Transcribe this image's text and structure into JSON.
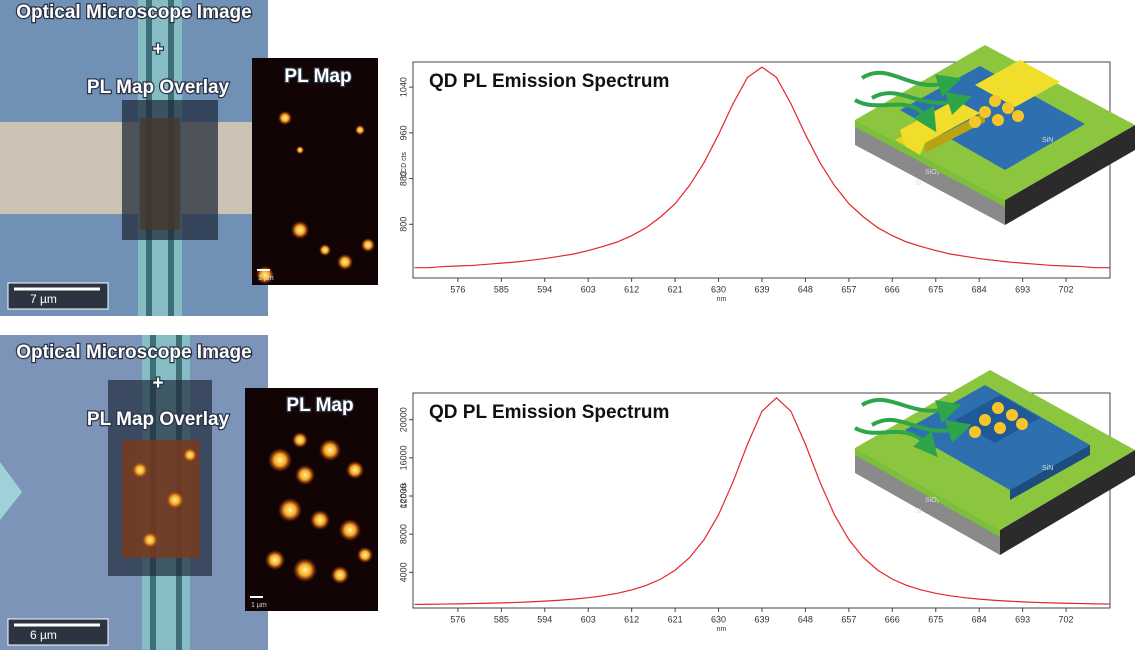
{
  "rows": [
    {
      "microscope": {
        "title": "Optical Microscope Image",
        "plus": "+",
        "subtitle": "PL Map Overlay",
        "scale_bar": "7 µm"
      },
      "pl_map": {
        "title": "PL Map",
        "scale_bar": "1 µm"
      },
      "device": {
        "labels": [
          "SiO₂",
          "Si",
          "SiN"
        ]
      }
    },
    {
      "microscope": {
        "title": "Optical Microscope Image",
        "plus": "+",
        "subtitle": "PL Map Overlay",
        "scale_bar": "6 µm"
      },
      "pl_map": {
        "title": "PL Map",
        "scale_bar": "1 µm"
      },
      "device": {
        "labels": [
          "SiO₂",
          "Si",
          "SiN"
        ]
      }
    }
  ],
  "chart_data": [
    {
      "type": "line",
      "title": "QD PL Emission Spectrum",
      "x_label": "nm",
      "y_label": "CCD cts",
      "color": "#e3262b",
      "x": [
        567,
        570,
        573,
        576,
        579,
        582,
        585,
        588,
        591,
        594,
        597,
        600,
        603,
        606,
        609,
        612,
        615,
        618,
        621,
        624,
        627,
        630,
        633,
        636,
        639,
        642,
        645,
        648,
        651,
        654,
        657,
        660,
        663,
        666,
        669,
        672,
        675,
        678,
        681,
        684,
        687,
        690,
        693,
        696,
        699,
        702,
        705,
        708,
        711
      ],
      "values": [
        724,
        724,
        726,
        727,
        728,
        730,
        732,
        734,
        737,
        740,
        744,
        748,
        754,
        761,
        769,
        780,
        794,
        813,
        836,
        868,
        908,
        957,
        1011,
        1057,
        1075,
        1057,
        1011,
        957,
        908,
        868,
        836,
        813,
        794,
        780,
        769,
        761,
        754,
        748,
        744,
        740,
        737,
        734,
        732,
        730,
        728,
        727,
        726,
        724,
        724
      ],
      "xlim": [
        566.7,
        711.1
      ],
      "xticks": [
        576,
        585,
        594,
        603,
        612,
        621,
        630,
        639,
        648,
        657,
        666,
        675,
        684,
        693,
        702
      ],
      "ylim": [
        706,
        1084
      ],
      "yticks": [
        800,
        880,
        960,
        1040
      ]
    },
    {
      "type": "line",
      "title": "QD PL Emission Spectrum",
      "x_label": "nm",
      "y_label": "CCD cts",
      "color": "#e3262b",
      "x": [
        567,
        570,
        573,
        576,
        579,
        582,
        585,
        588,
        591,
        594,
        597,
        600,
        603,
        606,
        609,
        612,
        615,
        618,
        621,
        624,
        627,
        630,
        633,
        636,
        639,
        642,
        645,
        648,
        651,
        654,
        657,
        660,
        663,
        666,
        669,
        672,
        675,
        678,
        681,
        684,
        687,
        690,
        693,
        696,
        699,
        702,
        705,
        708,
        711
      ],
      "values": [
        635,
        652,
        671,
        695,
        723,
        756,
        796,
        845,
        904,
        978,
        1072,
        1189,
        1341,
        1538,
        1798,
        2149,
        2627,
        3288,
        4221,
        5545,
        7425,
        10041,
        13476,
        17428,
        20881,
        22300,
        20881,
        17428,
        13476,
        10041,
        7425,
        5545,
        4221,
        3288,
        2627,
        2149,
        1798,
        1538,
        1341,
        1189,
        1072,
        978,
        904,
        845,
        796,
        756,
        723,
        695,
        671
      ],
      "xlim": [
        566.7,
        711.1
      ],
      "xticks": [
        576,
        585,
        594,
        603,
        612,
        621,
        630,
        639,
        648,
        657,
        666,
        675,
        684,
        693,
        702
      ],
      "ylim": [
        260,
        22800
      ],
      "yticks": [
        4000,
        8000,
        12000,
        16000,
        20000
      ]
    }
  ]
}
